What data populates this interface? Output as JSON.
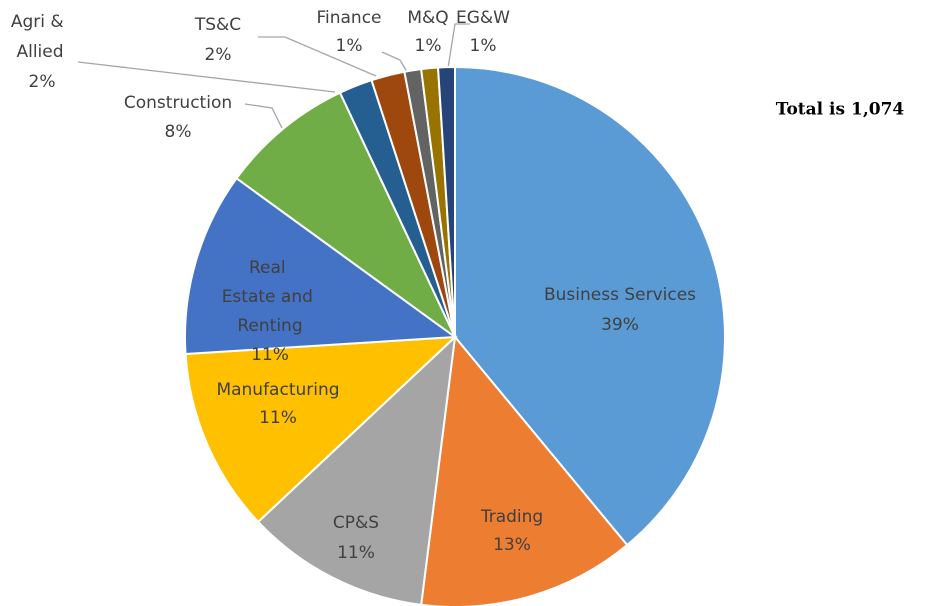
{
  "chart_data": {
    "type": "pie",
    "categories": [
      "Business Services",
      "Trading",
      "CP&S",
      "Manufacturing",
      "Real Estate and Renting",
      "Construction",
      "Agri & Allied",
      "TS&C",
      "Finance",
      "M&Q",
      "EG&W"
    ],
    "values": [
      39,
      13,
      11,
      11,
      11,
      8,
      2,
      2,
      1,
      1,
      1
    ],
    "value_labels": [
      "39%",
      "13%",
      "11%",
      "11%",
      "11%",
      "8%",
      "2%",
      "2%",
      "1%",
      "1%",
      "1%"
    ],
    "colors": [
      "#5B9BD5",
      "#ED7D31",
      "#A5A5A5",
      "#FFC000",
      "#4472C4",
      "#70AD47",
      "#255E91",
      "#9E480E",
      "#636363",
      "#997300",
      "#264478"
    ],
    "annotation": "Total is 1,074"
  }
}
